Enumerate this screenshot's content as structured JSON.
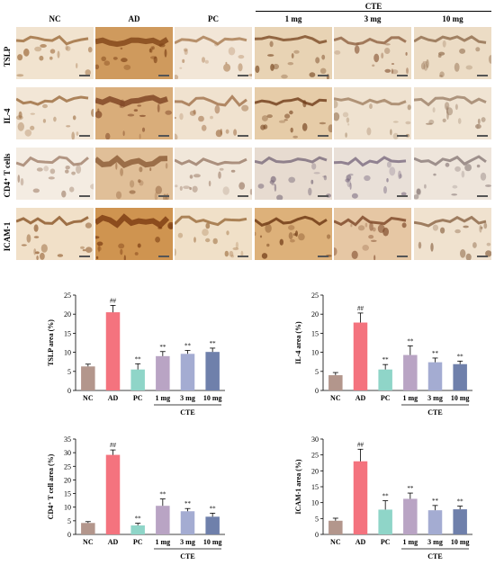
{
  "micrograph_panel": {
    "column_headers": [
      "NC",
      "AD",
      "PC",
      "1 mg",
      "3 mg",
      "10 mg"
    ],
    "group_header": "CTE",
    "row_headers": [
      "TSLP",
      "IL-4",
      "CD4⁺ T cells",
      "ICAM-1"
    ]
  },
  "chart_data": [
    {
      "type": "bar",
      "ylabel": "TSLP area (%)",
      "categories": [
        "NC",
        "AD",
        "PC",
        "1 mg",
        "3 mg",
        "10 mg"
      ],
      "group_label": "CTE",
      "values": [
        6.3,
        20.5,
        5.5,
        9.0,
        9.6,
        10.1
      ],
      "errors": [
        0.6,
        1.8,
        1.5,
        1.2,
        0.9,
        1.0
      ],
      "annotations": [
        "",
        "##",
        "**",
        "**",
        "**",
        "**"
      ],
      "ylim": [
        0,
        25
      ],
      "yticks": [
        0,
        5,
        10,
        15,
        20,
        25
      ],
      "colors": [
        "#b3968c",
        "#f4737e",
        "#8fd5c8",
        "#b9a4c4",
        "#a4acd2",
        "#6f80ab"
      ]
    },
    {
      "type": "bar",
      "ylabel": "IL-4 area (%)",
      "categories": [
        "NC",
        "AD",
        "PC",
        "1 mg",
        "3 mg",
        "10 mg"
      ],
      "group_label": "CTE",
      "values": [
        4.0,
        17.8,
        5.5,
        9.3,
        7.4,
        6.9
      ],
      "errors": [
        0.7,
        2.5,
        1.3,
        2.4,
        1.1,
        0.8
      ],
      "annotations": [
        "",
        "##",
        "**",
        "**",
        "**",
        "**"
      ],
      "ylim": [
        0,
        25
      ],
      "yticks": [
        0,
        5,
        10,
        15,
        20,
        25
      ],
      "colors": [
        "#b3968c",
        "#f4737e",
        "#8fd5c8",
        "#b9a4c4",
        "#a4acd2",
        "#6f80ab"
      ]
    },
    {
      "type": "bar",
      "ylabel": "CD4⁺ T cell area (%)",
      "categories": [
        "NC",
        "AD",
        "PC",
        "1 mg",
        "3 mg",
        "10 mg"
      ],
      "group_label": "CTE",
      "values": [
        4.2,
        29.2,
        3.3,
        10.5,
        8.5,
        6.5
      ],
      "errors": [
        0.5,
        1.8,
        0.8,
        2.5,
        1.0,
        1.3
      ],
      "annotations": [
        "",
        "##",
        "**",
        "**",
        "**",
        "**"
      ],
      "ylim": [
        0,
        35
      ],
      "yticks": [
        0,
        5,
        10,
        15,
        20,
        25,
        30,
        35
      ],
      "colors": [
        "#b3968c",
        "#f4737e",
        "#8fd5c8",
        "#b9a4c4",
        "#a4acd2",
        "#6f80ab"
      ]
    },
    {
      "type": "bar",
      "ylabel": "ICAM-1 area (%)",
      "categories": [
        "NC",
        "AD",
        "PC",
        "1 mg",
        "3 mg",
        "10 mg"
      ],
      "group_label": "CTE",
      "values": [
        4.3,
        23.0,
        7.8,
        11.2,
        7.6,
        7.9
      ],
      "errors": [
        0.8,
        3.8,
        2.8,
        1.8,
        1.5,
        1.0
      ],
      "annotations": [
        "",
        "##",
        "**",
        "**",
        "**",
        "**"
      ],
      "ylim": [
        0,
        30
      ],
      "yticks": [
        0,
        5,
        10,
        15,
        20,
        25,
        30
      ],
      "colors": [
        "#b3968c",
        "#f4737e",
        "#8fd5c8",
        "#b9a4c4",
        "#a4acd2",
        "#6f80ab"
      ]
    }
  ]
}
